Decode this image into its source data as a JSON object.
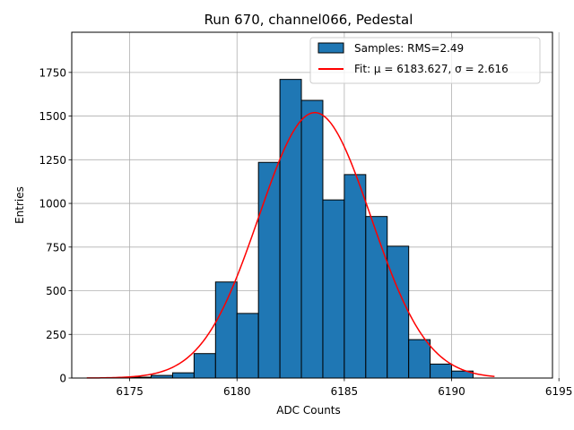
{
  "chart_data": {
    "type": "bar",
    "title": "Run 670, channel066, Pedestal",
    "xlabel": "ADC Counts",
    "ylabel": "Entries",
    "xlim": [
      6172.3,
      6194.7
    ],
    "ylim": [
      0,
      1980
    ],
    "xticks": [
      6175,
      6180,
      6185,
      6190,
      6195
    ],
    "yticks": [
      0,
      250,
      500,
      750,
      1000,
      1250,
      1500,
      1750
    ],
    "grid": true,
    "legend_position": "top-right",
    "bins": {
      "edges": [
        6175,
        6176,
        6177,
        6178,
        6179,
        6180,
        6181,
        6182,
        6183,
        6184,
        6185,
        6186,
        6187,
        6188,
        6189,
        6190,
        6191
      ],
      "values": [
        5,
        15,
        30,
        140,
        550,
        370,
        1235,
        1710,
        1590,
        1020,
        1165,
        925,
        755,
        220,
        80,
        40
      ]
    },
    "series": [
      {
        "name": "Samples: RMS=2.49",
        "kind": "histogram",
        "color": "#1f77b4",
        "edgecolor": "#000000"
      },
      {
        "name": "Fit: μ = 6183.627, σ = 2.616",
        "kind": "gaussian",
        "color": "#ff0000",
        "mu": 6183.627,
        "sigma": 2.616,
        "amplitude": 1520,
        "x_range": [
          6173,
          6192
        ]
      }
    ]
  }
}
